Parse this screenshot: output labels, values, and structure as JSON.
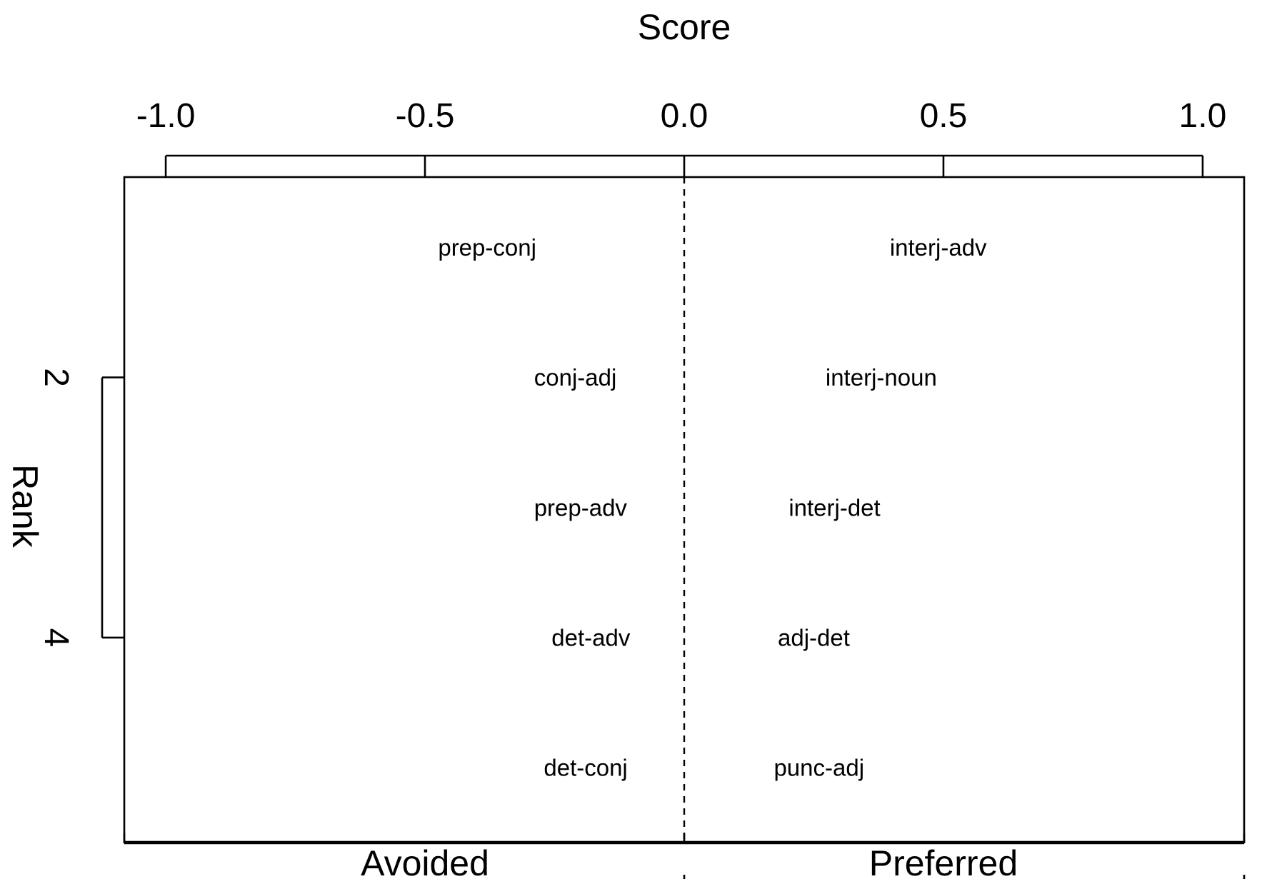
{
  "chart_data": {
    "type": "scatter",
    "xlabel": "Score",
    "ylabel": "Rank",
    "xlim": [
      -1.08,
      1.08
    ],
    "ylim": [
      0.46,
      5.57
    ],
    "x_ticks": [
      -1.0,
      -0.5,
      0.0,
      0.5,
      1.0
    ],
    "x_tick_labels": [
      "-1.0",
      "-0.5",
      "0.0",
      "0.5",
      "1.0"
    ],
    "y_ticks": [
      2,
      4
    ],
    "y_tick_labels": [
      "2",
      "4"
    ],
    "reference_line": {
      "x": 0.0,
      "style": "dashed"
    },
    "grid": false,
    "legend": "none",
    "bottom_labels": [
      "Avoided",
      "Preferred"
    ],
    "avoided": [
      {
        "rank": 1,
        "label": "prep-conj",
        "score": -0.38
      },
      {
        "rank": 2,
        "label": "conj-adj",
        "score": -0.21
      },
      {
        "rank": 3,
        "label": "prep-adv",
        "score": -0.2
      },
      {
        "rank": 4,
        "label": "det-adv",
        "score": -0.18
      },
      {
        "rank": 5,
        "label": "det-conj",
        "score": -0.19
      }
    ],
    "preferred": [
      {
        "rank": 1,
        "label": "interj-adv",
        "score": 0.49
      },
      {
        "rank": 2,
        "label": "interj-noun",
        "score": 0.38
      },
      {
        "rank": 3,
        "label": "interj-det",
        "score": 0.29
      },
      {
        "rank": 4,
        "label": "adj-det",
        "score": 0.25
      },
      {
        "rank": 5,
        "label": "punc-adj",
        "score": 0.26
      }
    ]
  }
}
